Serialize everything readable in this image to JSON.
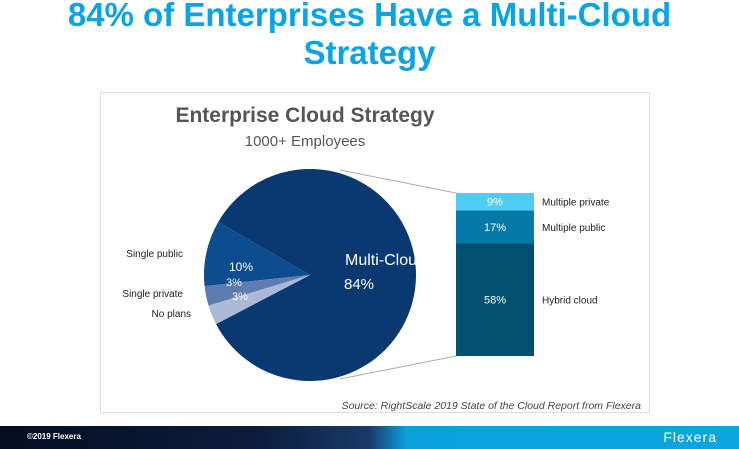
{
  "slide_title": "84% of Enterprises Have a Multi-Cloud Strategy",
  "chart_data": {
    "type": "pie",
    "title": "Enterprise Cloud Strategy",
    "subtitle": "1000+ Employees",
    "slices": [
      {
        "label": "Multi-Cloud",
        "value": 84,
        "display": "84%",
        "color": "#0a3870"
      },
      {
        "label": "Single public",
        "value": 10,
        "display": "10%",
        "color": "#0b4d8f"
      },
      {
        "label": "Single private",
        "value": 3,
        "display": "3%",
        "color": "#5f7cb2"
      },
      {
        "label": "No plans",
        "value": 3,
        "display": "3%",
        "color": "#a9b9d6"
      }
    ],
    "breakdown": {
      "of": "Multi-Cloud",
      "segments": [
        {
          "label": "Multiple private",
          "value": 9,
          "display": "9%",
          "color": "#4fcdf7"
        },
        {
          "label": "Multiple public",
          "value": 17,
          "display": "17%",
          "color": "#0579a8"
        },
        {
          "label": "Hybrid cloud",
          "value": 58,
          "display": "58%",
          "color": "#02506f"
        }
      ]
    },
    "source": "Source: RightScale 2019 State of the Cloud Report from Flexera"
  },
  "footer": {
    "copyright": "©2019 Flexera",
    "logo": "Flexera"
  }
}
